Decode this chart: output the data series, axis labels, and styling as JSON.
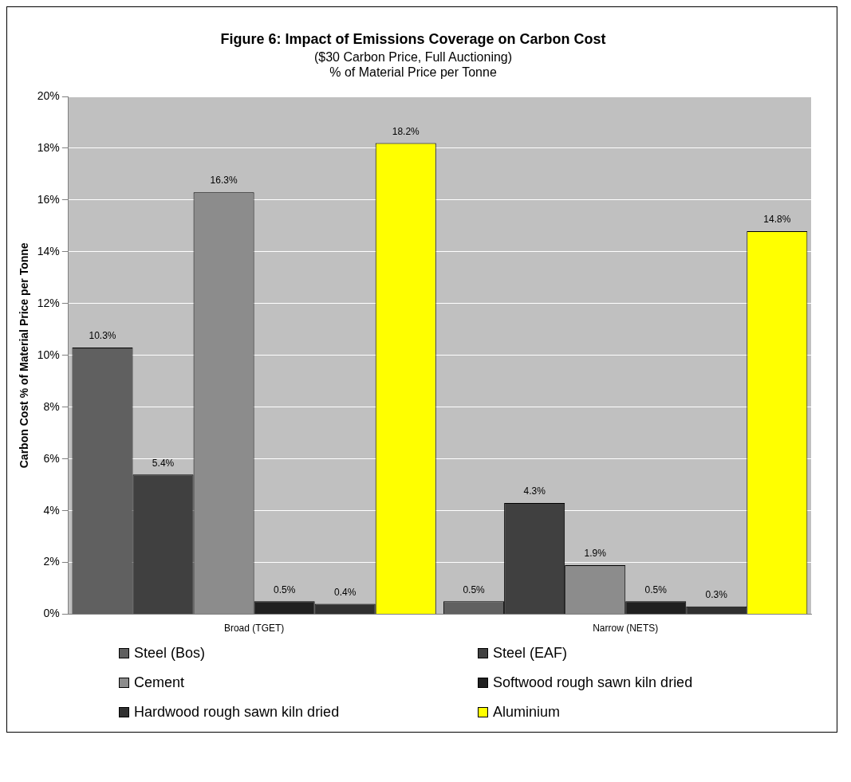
{
  "chart_data": {
    "type": "bar",
    "title": "Figure 6: Impact of Emissions Coverage on Carbon Cost",
    "subtitle": "($30 Carbon Price, Full Auctioning)\n% of Material Price per Tonne",
    "ylabel": "Carbon Cost % of Material Price per Tonne",
    "categories": [
      "Broad (TGET)",
      "Narrow (NETS)"
    ],
    "series": [
      {
        "name": "Steel (Bos)",
        "color": "#606060",
        "values": [
          10.3,
          0.5
        ],
        "value_labels": [
          "10.3%",
          "0.5%"
        ]
      },
      {
        "name": "Steel (EAF)",
        "color": "#404040",
        "values": [
          5.4,
          4.3
        ],
        "value_labels": [
          "5.4%",
          "4.3%"
        ]
      },
      {
        "name": "Cement",
        "color": "#8c8c8c",
        "values": [
          16.3,
          1.9
        ],
        "value_labels": [
          "16.3%",
          "1.9%"
        ]
      },
      {
        "name": "Softwood rough sawn kiln dried",
        "color": "#202020",
        "values": [
          0.5,
          0.5
        ],
        "value_labels": [
          "0.5%",
          "0.5%"
        ]
      },
      {
        "name": "Hardwood rough sawn kiln dried",
        "color": "#303030",
        "values": [
          0.4,
          0.3
        ],
        "value_labels": [
          "0.4%",
          "0.3%"
        ]
      },
      {
        "name": "Aluminium",
        "color": "#ffff00",
        "values": [
          18.2,
          14.8
        ],
        "value_labels": [
          "18.2%",
          "14.8%"
        ]
      }
    ],
    "ylim": [
      0,
      20
    ],
    "yticks": [
      {
        "value": 0,
        "label": "0%"
      },
      {
        "value": 2,
        "label": "2%"
      },
      {
        "value": 4,
        "label": "4%"
      },
      {
        "value": 6,
        "label": "6%"
      },
      {
        "value": 8,
        "label": "8%"
      },
      {
        "value": 10,
        "label": "10%"
      },
      {
        "value": 12,
        "label": "12%"
      },
      {
        "value": 14,
        "label": "14%"
      },
      {
        "value": 16,
        "label": "16%"
      },
      {
        "value": 18,
        "label": "18%"
      },
      {
        "value": 20,
        "label": "20%"
      }
    ],
    "grid": "y",
    "legend": "bottom"
  }
}
